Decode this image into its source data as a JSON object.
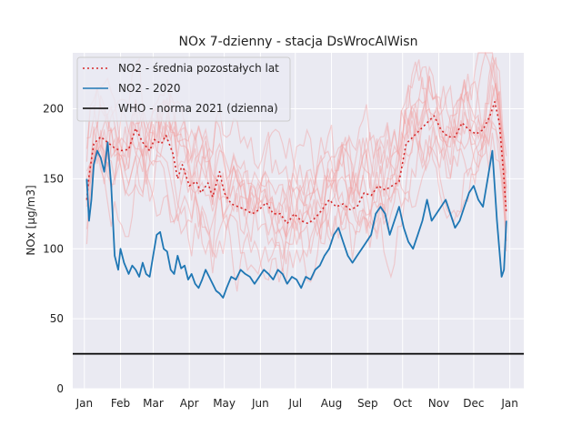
{
  "chart_data": {
    "type": "line",
    "title": "NOx 7-dzienny - stacja DsWrocAlWisn",
    "xlabel": "",
    "ylabel": "NOx [µg/m3]",
    "ylim": [
      0,
      240
    ],
    "xlim": [
      -10,
      377
    ],
    "y_ticks": [
      0,
      50,
      100,
      150,
      200
    ],
    "x_ticks": [
      {
        "label": "Jan",
        "day": 0
      },
      {
        "label": "Feb",
        "day": 31
      },
      {
        "label": "Mar",
        "day": 59
      },
      {
        "label": "Apr",
        "day": 90
      },
      {
        "label": "May",
        "day": 120
      },
      {
        "label": "Jun",
        "day": 151
      },
      {
        "label": "Jul",
        "day": 181
      },
      {
        "label": "Aug",
        "day": 212
      },
      {
        "label": "Sep",
        "day": 243
      },
      {
        "label": "Oct",
        "day": 273
      },
      {
        "label": "Nov",
        "day": 304
      },
      {
        "label": "Dec",
        "day": 334
      },
      {
        "label": "Jan",
        "day": 365
      }
    ],
    "grid": true,
    "background": "#eaeaf2",
    "legend_position": "top-left",
    "colors": {
      "avg": "#d62728",
      "current": "#1f77b4",
      "who": "#000000",
      "past_years": "#f2a0a0"
    },
    "series": [
      {
        "name": "NO2 - średnia pozostałych lat",
        "style": "dotted",
        "x": [
          2,
          4,
          8,
          14,
          20,
          26,
          31,
          38,
          44,
          50,
          56,
          60,
          66,
          70,
          76,
          80,
          84,
          90,
          96,
          100,
          106,
          110,
          116,
          120,
          126,
          132,
          138,
          144,
          150,
          156,
          162,
          168,
          174,
          180,
          186,
          192,
          198,
          204,
          210,
          216,
          222,
          228,
          234,
          240,
          246,
          252,
          258,
          264,
          270,
          276,
          282,
          288,
          294,
          300,
          306,
          312,
          318,
          324,
          330,
          336,
          342,
          348,
          352,
          356,
          360,
          362
        ],
        "values": [
          135,
          152,
          175,
          180,
          176,
          172,
          170,
          171,
          186,
          176,
          170,
          178,
          175,
          181,
          168,
          150,
          160,
          145,
          148,
          140,
          147,
          137,
          155,
          140,
          132,
          130,
          128,
          125,
          128,
          133,
          125,
          125,
          118,
          125,
          120,
          118,
          122,
          128,
          135,
          130,
          132,
          128,
          130,
          140,
          138,
          145,
          142,
          145,
          148,
          175,
          180,
          185,
          190,
          195,
          185,
          180,
          180,
          190,
          185,
          182,
          185,
          195,
          205,
          190,
          150,
          125
        ]
      },
      {
        "name": "NO2 - 2020",
        "style": "solid",
        "x": [
          2,
          4,
          6,
          8,
          11,
          14,
          17,
          20,
          23,
          26,
          29,
          31,
          34,
          38,
          41,
          44,
          47,
          50,
          53,
          56,
          59,
          62,
          65,
          68,
          71,
          74,
          77,
          80,
          83,
          86,
          89,
          92,
          95,
          98,
          101,
          104,
          107,
          110,
          113,
          116,
          119,
          122,
          126,
          130,
          134,
          138,
          142,
          146,
          150,
          154,
          158,
          162,
          166,
          170,
          174,
          178,
          182,
          186,
          190,
          194,
          198,
          202,
          206,
          210,
          214,
          218,
          222,
          226,
          230,
          234,
          238,
          242,
          246,
          250,
          254,
          258,
          262,
          266,
          270,
          274,
          278,
          282,
          286,
          290,
          294,
          298,
          302,
          306,
          310,
          314,
          318,
          322,
          326,
          330,
          334,
          338,
          342,
          346,
          350,
          354,
          358,
          360,
          362
        ],
        "values": [
          150,
          120,
          135,
          160,
          170,
          165,
          155,
          176,
          145,
          95,
          85,
          100,
          90,
          82,
          88,
          85,
          80,
          90,
          82,
          80,
          95,
          110,
          112,
          100,
          98,
          85,
          82,
          95,
          86,
          88,
          78,
          82,
          75,
          72,
          78,
          85,
          80,
          75,
          70,
          68,
          65,
          72,
          80,
          78,
          85,
          82,
          80,
          75,
          80,
          85,
          82,
          78,
          85,
          82,
          75,
          80,
          78,
          72,
          80,
          78,
          85,
          88,
          95,
          100,
          110,
          115,
          105,
          95,
          90,
          95,
          100,
          105,
          110,
          125,
          130,
          125,
          110,
          120,
          130,
          115,
          105,
          100,
          110,
          120,
          135,
          120,
          125,
          130,
          135,
          125,
          115,
          120,
          130,
          140,
          145,
          135,
          130,
          150,
          170,
          120,
          80,
          85,
          120
        ]
      },
      {
        "name": "WHO - norma 2021 (dzienna)",
        "style": "solid",
        "x": [
          -10,
          377
        ],
        "values": [
          25,
          25
        ]
      }
    ]
  }
}
